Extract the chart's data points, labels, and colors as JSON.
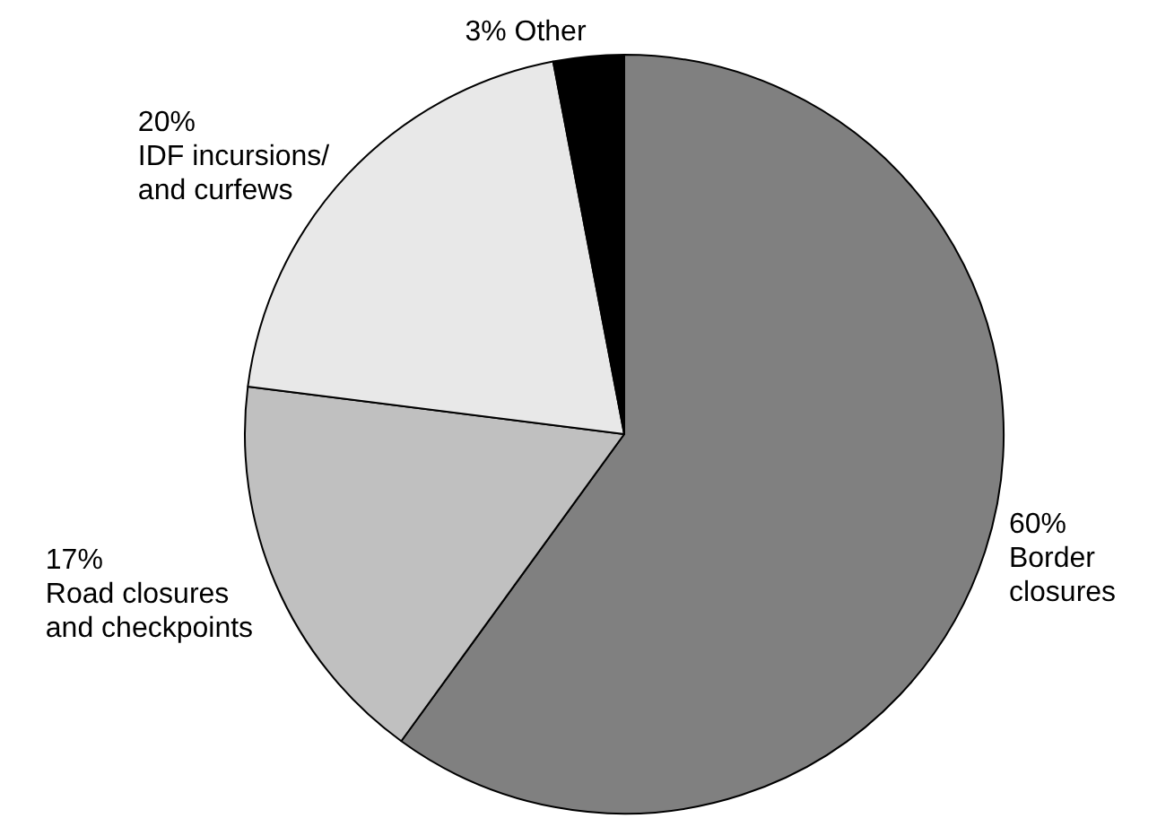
{
  "chart_data": {
    "type": "pie",
    "categories": [
      "Border\nclosures",
      "Road closures\nand checkpoints",
      "IDF incursions/\nand curfews",
      "Other"
    ],
    "values": [
      60,
      17,
      20,
      3
    ],
    "value_labels": [
      "60%",
      "17%",
      "20%",
      "3%"
    ],
    "colors": [
      "#808080",
      "#c0c0c0",
      "#e8e8e8",
      "#000000"
    ],
    "legend": false
  }
}
